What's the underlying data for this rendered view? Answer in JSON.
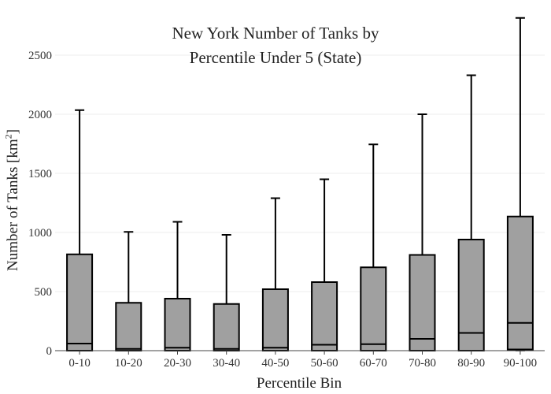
{
  "chart_data": {
    "type": "box",
    "title_line1": "New York Number of Tanks by",
    "title_line2": "Percentile Under 5 (State)",
    "xlabel": "Percentile Bin",
    "ylabel_main": "Number of Tanks  [km",
    "ylabel_sup": "2",
    "ylabel_end": "]",
    "ylim": [
      0,
      2800
    ],
    "yticks": [
      0,
      500,
      1000,
      1500,
      2000,
      2500
    ],
    "grid": true,
    "categories": [
      "0-10",
      "10-20",
      "20-30",
      "30-40",
      "40-50",
      "50-60",
      "60-70",
      "70-80",
      "80-90",
      "90-100"
    ],
    "boxes": [
      {
        "min": 0,
        "q1": 0,
        "median": 60,
        "q3": 815,
        "max": 2035
      },
      {
        "min": 0,
        "q1": 0,
        "median": 15,
        "q3": 405,
        "max": 1005
      },
      {
        "min": 0,
        "q1": 0,
        "median": 25,
        "q3": 440,
        "max": 1090
      },
      {
        "min": 0,
        "q1": 0,
        "median": 15,
        "q3": 395,
        "max": 980
      },
      {
        "min": 0,
        "q1": 0,
        "median": 25,
        "q3": 520,
        "max": 1290
      },
      {
        "min": 0,
        "q1": 0,
        "median": 50,
        "q3": 580,
        "max": 1450
      },
      {
        "min": 0,
        "q1": 0,
        "median": 55,
        "q3": 705,
        "max": 1745
      },
      {
        "min": 0,
        "q1": 0,
        "median": 100,
        "q3": 810,
        "max": 2000
      },
      {
        "min": 0,
        "q1": 0,
        "median": 150,
        "q3": 940,
        "max": 2330
      },
      {
        "min": 0,
        "q1": 10,
        "median": 235,
        "q3": 1135,
        "max": 2815
      }
    ],
    "colors": {
      "box_fill": "#a0a0a0",
      "stroke": "#000000",
      "grid": "#eeeeee",
      "axis": "#444444"
    }
  }
}
